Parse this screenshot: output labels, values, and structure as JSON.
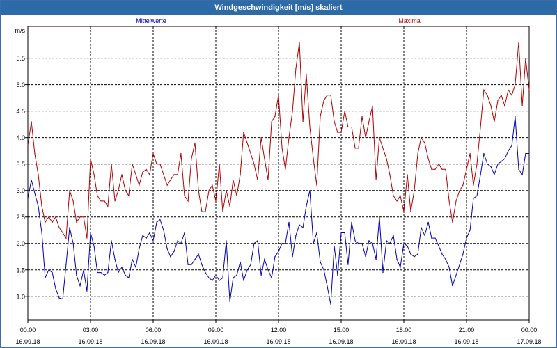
{
  "window": {
    "title": "Windgeschwindigkeit [m/s] skaliert"
  },
  "chart_data": {
    "type": "line",
    "unit_label": "m/s",
    "ylim": [
      0.55,
      6.1
    ],
    "yticks": [
      "1.0",
      "1.5",
      "2.0",
      "2.5",
      "3.0",
      "3.5",
      "4.0",
      "4.5",
      "5.0",
      "5.5"
    ],
    "xlim": [
      0,
      24
    ],
    "xtick_hours": [
      0,
      3,
      6,
      9,
      12,
      15,
      18,
      21,
      24
    ],
    "xtick_times": [
      "00:00",
      "03:00",
      "06:00",
      "09:00",
      "12:00",
      "15:00",
      "18:00",
      "21:00",
      "00:00"
    ],
    "xtick_dates": [
      "16.09.18",
      "16.09.18",
      "16.09.18",
      "16.09.18",
      "16.09.18",
      "16.09.18",
      "16.09.18",
      "16.09.18",
      "17.09.18"
    ],
    "grid": true,
    "series": [
      {
        "name": "Mittelwerte",
        "color": "#0000b0",
        "x": [
          0,
          0.17,
          0.33,
          0.5,
          0.67,
          0.83,
          1.0,
          1.17,
          1.33,
          1.5,
          1.67,
          1.83,
          2.0,
          2.17,
          2.33,
          2.5,
          2.67,
          2.83,
          3.0,
          3.17,
          3.33,
          3.5,
          3.67,
          3.83,
          4.0,
          4.17,
          4.33,
          4.5,
          4.67,
          4.83,
          5.0,
          5.17,
          5.33,
          5.5,
          5.67,
          5.83,
          6.0,
          6.17,
          6.33,
          6.5,
          6.67,
          6.83,
          7.0,
          7.17,
          7.33,
          7.5,
          7.67,
          7.83,
          8.0,
          8.17,
          8.33,
          8.5,
          8.67,
          8.83,
          9.0,
          9.17,
          9.33,
          9.5,
          9.67,
          9.83,
          10.0,
          10.17,
          10.33,
          10.5,
          10.67,
          10.83,
          11.0,
          11.17,
          11.33,
          11.5,
          11.67,
          11.83,
          12.0,
          12.17,
          12.33,
          12.5,
          12.67,
          12.83,
          13.0,
          13.17,
          13.33,
          13.5,
          13.67,
          13.83,
          14.0,
          14.17,
          14.33,
          14.5,
          14.67,
          14.83,
          15.0,
          15.17,
          15.33,
          15.5,
          15.67,
          15.83,
          16.0,
          16.17,
          16.33,
          16.5,
          16.67,
          16.83,
          17.0,
          17.17,
          17.33,
          17.5,
          17.67,
          17.83,
          18.0,
          18.17,
          18.33,
          18.5,
          18.67,
          18.83,
          19.0,
          19.17,
          19.33,
          19.5,
          19.67,
          19.83,
          20.0,
          20.17,
          20.33,
          20.5,
          20.67,
          20.83,
          21.0,
          21.17,
          21.33,
          21.5,
          21.67,
          21.83,
          22.0,
          22.17,
          22.33,
          22.5,
          22.67,
          22.83,
          23.0,
          23.17,
          23.33,
          23.5,
          23.67,
          23.83,
          24.0
        ],
        "values": [
          2.85,
          3.2,
          2.95,
          2.7,
          2.2,
          1.35,
          1.5,
          1.45,
          1.15,
          0.97,
          0.95,
          1.6,
          2.3,
          2.0,
          1.4,
          1.2,
          1.5,
          1.1,
          2.2,
          1.95,
          1.45,
          1.45,
          1.4,
          1.45,
          2.05,
          1.7,
          1.45,
          1.55,
          1.4,
          1.35,
          1.7,
          1.55,
          1.9,
          2.15,
          2.1,
          2.2,
          2.05,
          2.4,
          2.45,
          2.25,
          1.9,
          1.75,
          1.85,
          2.05,
          2.0,
          2.2,
          1.6,
          1.6,
          1.7,
          1.8,
          1.6,
          1.45,
          1.35,
          1.3,
          1.4,
          1.3,
          1.35,
          2.05,
          0.9,
          1.35,
          1.4,
          1.65,
          1.3,
          1.5,
          1.6,
          2.0,
          2.05,
          1.4,
          1.7,
          1.5,
          1.35,
          1.75,
          1.85,
          2.0,
          2.0,
          2.4,
          1.75,
          2.15,
          2.35,
          2.3,
          2.7,
          3.0,
          2.0,
          2.2,
          1.65,
          1.5,
          1.2,
          0.85,
          1.95,
          1.4,
          2.2,
          2.2,
          1.6,
          2.4,
          2.05,
          2.0,
          2.0,
          1.75,
          2.05,
          2.0,
          1.7,
          2.5,
          1.45,
          2.05,
          2.0,
          2.15,
          1.7,
          1.55,
          2.0,
          1.95,
          1.8,
          1.75,
          1.8,
          2.3,
          2.15,
          2.4,
          2.1,
          2.1,
          1.95,
          1.8,
          1.7,
          1.55,
          1.2,
          1.4,
          1.6,
          1.8,
          2.1,
          2.25,
          2.85,
          2.9,
          3.3,
          3.7,
          3.5,
          3.45,
          3.3,
          3.5,
          3.55,
          3.6,
          3.75,
          3.85,
          4.4,
          3.4,
          3.3,
          3.7,
          3.7
        ],
        "show_label": true
      },
      {
        "name": "Maxima",
        "color": "#b00000",
        "x": [
          0,
          0.17,
          0.33,
          0.5,
          0.67,
          0.83,
          1.0,
          1.17,
          1.33,
          1.5,
          1.67,
          1.83,
          2.0,
          2.17,
          2.33,
          2.5,
          2.67,
          2.83,
          3.0,
          3.17,
          3.33,
          3.5,
          3.67,
          3.83,
          4.0,
          4.17,
          4.33,
          4.5,
          4.67,
          4.83,
          5.0,
          5.17,
          5.33,
          5.5,
          5.67,
          5.83,
          6.0,
          6.17,
          6.33,
          6.5,
          6.67,
          6.83,
          7.0,
          7.17,
          7.33,
          7.5,
          7.67,
          7.83,
          8.0,
          8.17,
          8.33,
          8.5,
          8.67,
          8.83,
          9.0,
          9.17,
          9.33,
          9.5,
          9.67,
          9.83,
          10.0,
          10.17,
          10.33,
          10.5,
          10.67,
          10.83,
          11.0,
          11.17,
          11.33,
          11.5,
          11.67,
          11.83,
          12.0,
          12.17,
          12.33,
          12.5,
          12.67,
          12.83,
          13.0,
          13.17,
          13.33,
          13.5,
          13.67,
          13.83,
          14.0,
          14.17,
          14.33,
          14.5,
          14.67,
          14.83,
          15.0,
          15.17,
          15.33,
          15.5,
          15.67,
          15.83,
          16.0,
          16.17,
          16.33,
          16.5,
          16.67,
          16.83,
          17.0,
          17.17,
          17.33,
          17.5,
          17.67,
          17.83,
          18.0,
          18.17,
          18.33,
          18.5,
          18.67,
          18.83,
          19.0,
          19.17,
          19.33,
          19.5,
          19.67,
          19.83,
          20.0,
          20.17,
          20.33,
          20.5,
          20.67,
          20.83,
          21.0,
          21.17,
          21.33,
          21.5,
          21.67,
          21.83,
          22.0,
          22.17,
          22.33,
          22.5,
          22.67,
          22.83,
          23.0,
          23.17,
          23.33,
          23.5,
          23.67,
          23.83,
          24.0
        ],
        "values": [
          3.85,
          4.3,
          3.7,
          3.3,
          2.7,
          2.4,
          2.5,
          2.4,
          2.5,
          2.3,
          2.2,
          2.1,
          3.0,
          2.8,
          2.4,
          2.5,
          2.5,
          2.1,
          3.6,
          3.3,
          2.9,
          2.8,
          2.8,
          2.7,
          3.5,
          2.8,
          3.0,
          3.3,
          3.0,
          2.9,
          3.5,
          3.3,
          3.1,
          3.35,
          3.4,
          3.3,
          3.7,
          3.5,
          3.5,
          3.3,
          3.1,
          3.2,
          3.3,
          3.3,
          3.7,
          2.9,
          2.8,
          3.6,
          3.9,
          3.0,
          2.6,
          2.6,
          3.0,
          3.1,
          2.8,
          3.5,
          2.6,
          3.0,
          2.7,
          3.2,
          2.9,
          3.3,
          4.1,
          3.9,
          3.7,
          3.5,
          3.2,
          4.0,
          3.6,
          3.2,
          4.3,
          4.4,
          4.8,
          3.8,
          3.4,
          4.0,
          4.5,
          5.3,
          5.8,
          4.3,
          5.2,
          4.2,
          3.6,
          3.1,
          4.4,
          4.7,
          4.8,
          4.8,
          4.3,
          4.1,
          4.1,
          4.5,
          4.2,
          4.2,
          3.8,
          3.8,
          4.4,
          4.0,
          4.3,
          4.6,
          3.2,
          4.0,
          3.8,
          3.6,
          3.3,
          2.9,
          2.8,
          2.9,
          2.6,
          3.3,
          2.6,
          3.0,
          3.7,
          4.0,
          3.9,
          3.6,
          3.4,
          3.4,
          3.5,
          3.4,
          3.4,
          2.8,
          2.4,
          2.8,
          3.0,
          3.1,
          3.4,
          3.7,
          3.1,
          3.5,
          4.2,
          4.9,
          4.8,
          4.6,
          4.3,
          4.7,
          4.8,
          4.6,
          4.9,
          4.8,
          5.0,
          5.8,
          4.6,
          5.5,
          4.9
        ],
        "show_label": true
      }
    ]
  }
}
